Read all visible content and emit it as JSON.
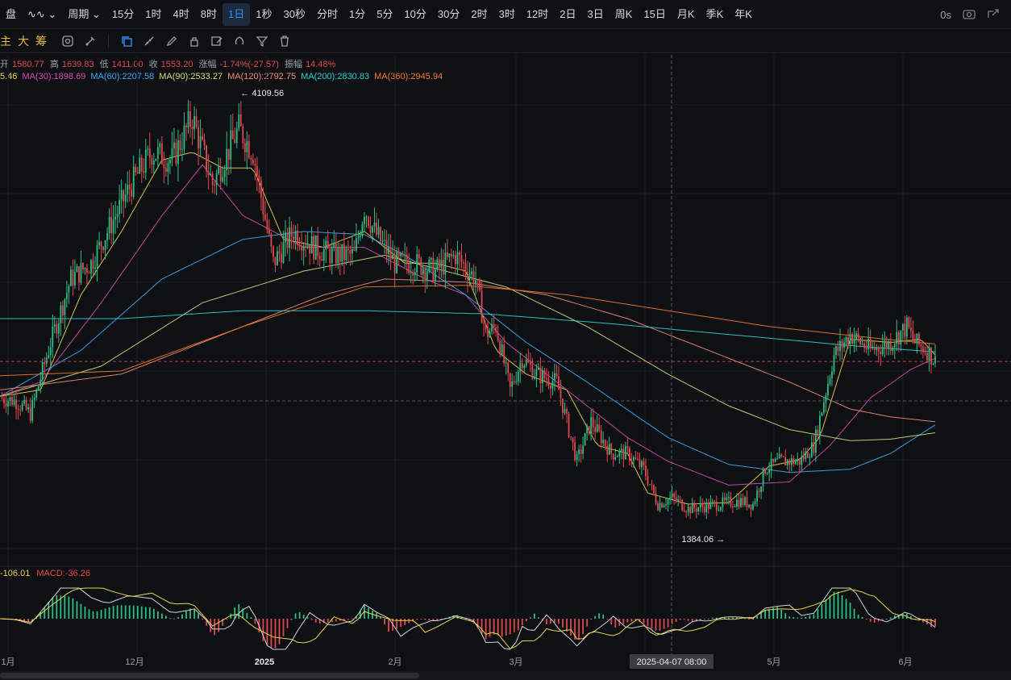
{
  "toolbar": {
    "items": [
      {
        "label": "盘"
      },
      {
        "label": "∿∿ ⌄"
      },
      {
        "label": "周期 ⌄"
      },
      {
        "label": "15分"
      },
      {
        "label": "1时"
      },
      {
        "label": "4时"
      },
      {
        "label": "8时"
      },
      {
        "label": "1日"
      },
      {
        "label": "1秒"
      },
      {
        "label": "30秒"
      },
      {
        "label": "分时"
      },
      {
        "label": "1分"
      },
      {
        "label": "5分"
      },
      {
        "label": "10分"
      },
      {
        "label": "30分"
      },
      {
        "label": "2时"
      },
      {
        "label": "3时"
      },
      {
        "label": "12时"
      },
      {
        "label": "2日"
      },
      {
        "label": "3日"
      },
      {
        "label": "周K"
      },
      {
        "label": "15日"
      },
      {
        "label": "月K"
      },
      {
        "label": "季K"
      },
      {
        "label": "年K"
      }
    ],
    "active_index": 7,
    "timer": "0s"
  },
  "drawbar": {
    "labels": [
      "主",
      "大",
      "筹"
    ]
  },
  "ohlc": {
    "open_label": "开",
    "open": "1580.77",
    "high_label": "高",
    "high": "1639.83",
    "low_label": "低",
    "low": "1411.00",
    "close_label": "收",
    "close": "1553.20",
    "change_label": "涨幅",
    "change": "-1.74%(-27.57)",
    "amp_label": "振幅",
    "amp": "14.48%"
  },
  "ma": [
    {
      "label": "5.46",
      "color": "#e8d44d"
    },
    {
      "label": "MA(30):1898.69",
      "color": "#d64bb4"
    },
    {
      "label": "MA(60):2207.58",
      "color": "#3fa9f5"
    },
    {
      "label": "MA(90):2533.27",
      "color": "#c6e07a"
    },
    {
      "label": "MA(120):2792.75",
      "color": "#f08a7a"
    },
    {
      "label": "MA(200):2830.83",
      "color": "#2fd0d6"
    },
    {
      "label": "MA(360):2945.94",
      "color": "#f07a2a"
    }
  ],
  "macd_info": [
    {
      "label": "-106.01",
      "color": "#e8d44d"
    },
    {
      "label": "MACD:-36.26",
      "color": "#e0484f"
    }
  ],
  "chart_data": {
    "type": "candlestick",
    "high_annotation": "4109.56",
    "low_annotation": "1384.06",
    "x_labels": [
      "1月",
      "12月",
      "2025",
      "2月",
      "3月",
      "2025-04-07 08:00",
      "5月",
      "6月"
    ],
    "crosshair_label": "2025-04-07 08:00",
    "up_color": "#2ebd85",
    "down_color": "#e0484f",
    "price_path": [
      [
        0,
        2250
      ],
      [
        8,
        2230
      ],
      [
        15,
        2150
      ],
      [
        25,
        2600
      ],
      [
        35,
        3000
      ],
      [
        45,
        3100
      ],
      [
        55,
        3350
      ],
      [
        65,
        3600
      ],
      [
        75,
        3800
      ],
      [
        85,
        3750
      ],
      [
        95,
        4020
      ],
      [
        105,
        3600
      ],
      [
        118,
        3950
      ],
      [
        125,
        3800
      ],
      [
        135,
        3100
      ],
      [
        145,
        3300
      ],
      [
        155,
        3200
      ],
      [
        165,
        3150
      ],
      [
        175,
        3150
      ],
      [
        180,
        3450
      ],
      [
        185,
        3300
      ],
      [
        195,
        3100
      ],
      [
        205,
        3100
      ],
      [
        215,
        3050
      ],
      [
        225,
        3150
      ],
      [
        235,
        3000
      ],
      [
        240,
        2650
      ],
      [
        245,
        2700
      ],
      [
        252,
        2300
      ],
      [
        258,
        2500
      ],
      [
        265,
        2400
      ],
      [
        275,
        2350
      ],
      [
        285,
        1850
      ],
      [
        292,
        2100
      ],
      [
        302,
        1900
      ],
      [
        310,
        1900
      ],
      [
        318,
        1800
      ],
      [
        325,
        1580
      ],
      [
        332,
        1620
      ],
      [
        340,
        1550
      ],
      [
        355,
        1580
      ],
      [
        365,
        1600
      ],
      [
        372,
        1580
      ],
      [
        378,
        1800
      ],
      [
        385,
        1850
      ],
      [
        395,
        1850
      ],
      [
        402,
        1950
      ],
      [
        412,
        2520
      ],
      [
        420,
        2650
      ],
      [
        430,
        2550
      ],
      [
        440,
        2600
      ],
      [
        448,
        2700
      ],
      [
        452,
        2600
      ],
      [
        458,
        2550
      ],
      [
        462,
        2480
      ]
    ],
    "ma_lines": [
      {
        "name": "MA(5)",
        "color": "#e8d44d",
        "points": [
          [
            0,
            2260
          ],
          [
            20,
            2300
          ],
          [
            40,
            2900
          ],
          [
            60,
            3300
          ],
          [
            80,
            3750
          ],
          [
            95,
            3800
          ],
          [
            110,
            3700
          ],
          [
            125,
            3700
          ],
          [
            140,
            3250
          ],
          [
            160,
            3200
          ],
          [
            180,
            3300
          ],
          [
            200,
            3100
          ],
          [
            215,
            3100
          ],
          [
            230,
            3050
          ],
          [
            245,
            2550
          ],
          [
            260,
            2400
          ],
          [
            280,
            2300
          ],
          [
            295,
            1950
          ],
          [
            310,
            1900
          ],
          [
            320,
            1650
          ],
          [
            340,
            1580
          ],
          [
            360,
            1590
          ],
          [
            380,
            1820
          ],
          [
            395,
            1860
          ],
          [
            405,
            2000
          ],
          [
            420,
            2620
          ],
          [
            440,
            2600
          ],
          [
            455,
            2620
          ],
          [
            462,
            2520
          ]
        ]
      },
      {
        "name": "MA(30)",
        "color": "#d64bb4",
        "points": [
          [
            0,
            2260
          ],
          [
            20,
            2350
          ],
          [
            50,
            2850
          ],
          [
            80,
            3400
          ],
          [
            100,
            3720
          ],
          [
            120,
            3400
          ],
          [
            150,
            3200
          ],
          [
            180,
            3200
          ],
          [
            210,
            3000
          ],
          [
            230,
            2900
          ],
          [
            250,
            2600
          ],
          [
            270,
            2400
          ],
          [
            290,
            2200
          ],
          [
            310,
            2000
          ],
          [
            330,
            1850
          ],
          [
            360,
            1700
          ],
          [
            390,
            1720
          ],
          [
            410,
            1950
          ],
          [
            430,
            2250
          ],
          [
            450,
            2430
          ],
          [
            462,
            2500
          ]
        ]
      },
      {
        "name": "MA(60)",
        "color": "#3fa9f5",
        "points": [
          [
            0,
            2260
          ],
          [
            40,
            2550
          ],
          [
            80,
            3000
          ],
          [
            120,
            3250
          ],
          [
            150,
            3300
          ],
          [
            180,
            3280
          ],
          [
            200,
            3150
          ],
          [
            230,
            2900
          ],
          [
            260,
            2600
          ],
          [
            290,
            2350
          ],
          [
            330,
            2000
          ],
          [
            360,
            1830
          ],
          [
            390,
            1780
          ],
          [
            420,
            1800
          ],
          [
            440,
            1900
          ],
          [
            462,
            2080
          ]
        ]
      },
      {
        "name": "MA(90)",
        "color": "#c6e07a",
        "points": [
          [
            0,
            2260
          ],
          [
            50,
            2450
          ],
          [
            100,
            2850
          ],
          [
            150,
            3050
          ],
          [
            190,
            3150
          ],
          [
            220,
            3050
          ],
          [
            250,
            2950
          ],
          [
            290,
            2700
          ],
          [
            330,
            2400
          ],
          [
            360,
            2200
          ],
          [
            390,
            2050
          ],
          [
            420,
            1980
          ],
          [
            440,
            1990
          ],
          [
            462,
            2030
          ]
        ]
      },
      {
        "name": "MA(120)",
        "color": "#f08a7a",
        "points": [
          [
            0,
            2300
          ],
          [
            60,
            2400
          ],
          [
            110,
            2650
          ],
          [
            160,
            2900
          ],
          [
            190,
            3000
          ],
          [
            230,
            2980
          ],
          [
            270,
            2900
          ],
          [
            310,
            2750
          ],
          [
            350,
            2550
          ],
          [
            390,
            2350
          ],
          [
            420,
            2180
          ],
          [
            440,
            2130
          ],
          [
            462,
            2100
          ]
        ]
      },
      {
        "name": "MA(200)",
        "color": "#2fd0d6",
        "points": [
          [
            0,
            2750
          ],
          [
            60,
            2750
          ],
          [
            120,
            2800
          ],
          [
            180,
            2800
          ],
          [
            240,
            2780
          ],
          [
            300,
            2720
          ],
          [
            360,
            2650
          ],
          [
            420,
            2580
          ],
          [
            462,
            2540
          ]
        ]
      },
      {
        "name": "MA(360)",
        "color": "#f07a2a",
        "points": [
          [
            0,
            2390
          ],
          [
            60,
            2420
          ],
          [
            120,
            2700
          ],
          [
            180,
            2950
          ],
          [
            230,
            2960
          ],
          [
            280,
            2900
          ],
          [
            330,
            2800
          ],
          [
            380,
            2700
          ],
          [
            430,
            2630
          ],
          [
            462,
            2590
          ]
        ]
      }
    ],
    "macd": {
      "dif_color": "#cfd2d8",
      "dea_color": "#e8d44d",
      "hist_up_color": "#2ebd85",
      "hist_down_color": "#e0484f"
    },
    "y_range": [
      1300,
      4200
    ]
  }
}
